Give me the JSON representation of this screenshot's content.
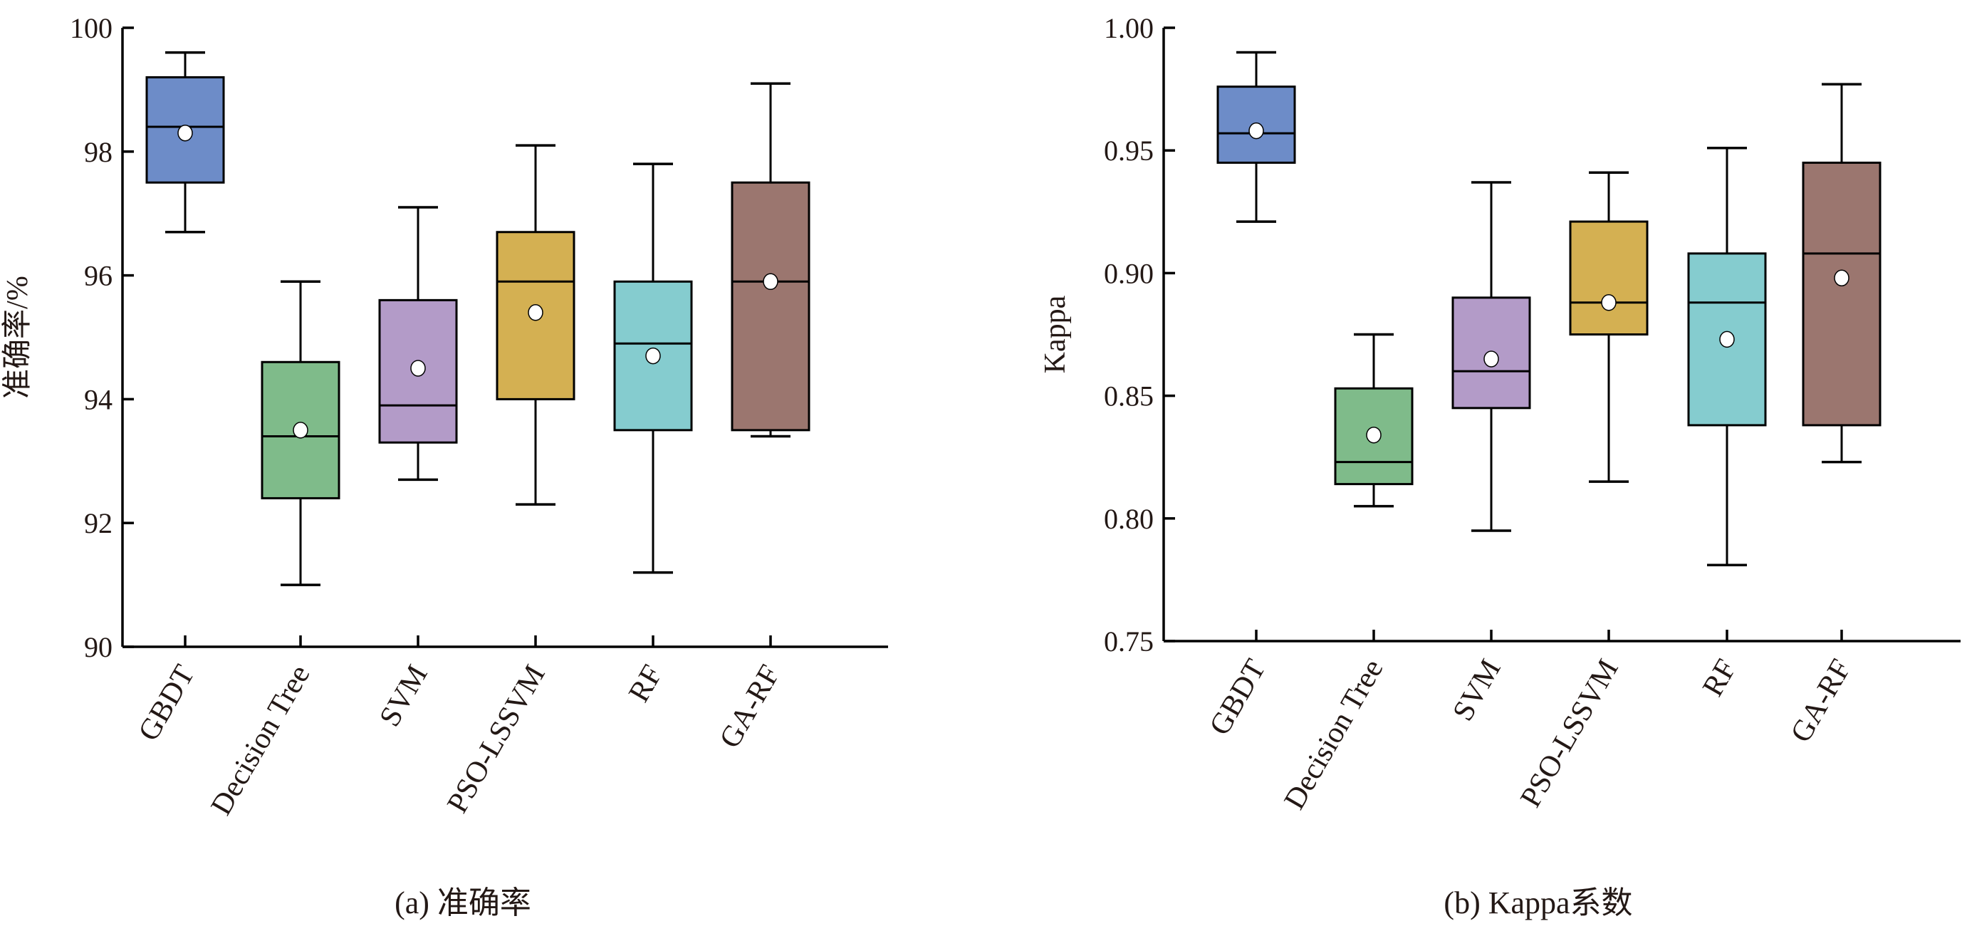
{
  "chart_data": [
    {
      "type": "boxplot",
      "caption": "(a) 准确率",
      "ylabel": "准确率/%",
      "ylim": [
        90,
        100
      ],
      "yticks": [
        90,
        92,
        94,
        96,
        98,
        100
      ],
      "ytick_labels": [
        "90",
        "92",
        "94",
        "96",
        "98",
        "100"
      ],
      "categories": [
        "GBDT",
        "Decision Tree",
        "SVM",
        "PSO-LSSVM",
        "RF",
        "GA-RF"
      ],
      "colors": [
        "#6d8cc8",
        "#7fbb8a",
        "#b39bc8",
        "#d4b052",
        "#85cccf",
        "#9b766f"
      ],
      "series": [
        {
          "name": "GBDT",
          "min": 96.7,
          "q1": 97.5,
          "median": 98.4,
          "q3": 99.2,
          "max": 99.6,
          "mean": 98.3
        },
        {
          "name": "Decision Tree",
          "min": 91.0,
          "q1": 92.4,
          "median": 93.4,
          "q3": 94.6,
          "max": 95.9,
          "mean": 93.5
        },
        {
          "name": "SVM",
          "min": 92.7,
          "q1": 93.3,
          "median": 93.9,
          "q3": 95.6,
          "max": 97.1,
          "mean": 94.5
        },
        {
          "name": "PSO-LSSVM",
          "min": 92.3,
          "q1": 94.0,
          "median": 95.9,
          "q3": 96.7,
          "max": 98.1,
          "mean": 95.4
        },
        {
          "name": "RF",
          "min": 91.2,
          "q1": 93.5,
          "median": 94.9,
          "q3": 95.9,
          "max": 97.8,
          "mean": 94.7
        },
        {
          "name": "GA-RF",
          "min": 93.4,
          "q1": 93.5,
          "median": 95.9,
          "q3": 97.5,
          "max": 99.1,
          "mean": 95.9
        }
      ]
    },
    {
      "type": "boxplot",
      "caption": "(b) Kappa系数",
      "ylabel": "Kappa",
      "ylim": [
        0.75,
        1.0
      ],
      "yticks": [
        0.75,
        0.8,
        0.85,
        0.9,
        0.95,
        1.0
      ],
      "ytick_labels": [
        "0.75",
        "0.80",
        "0.85",
        "0.90",
        "0.95",
        "1.00"
      ],
      "categories": [
        "GBDT",
        "Decision Tree",
        "SVM",
        "PSO-LSSVM",
        "RF",
        "GA-RF"
      ],
      "colors": [
        "#6d8cc8",
        "#7fbb8a",
        "#b39bc8",
        "#d4b052",
        "#85cccf",
        "#9b766f"
      ],
      "series": [
        {
          "name": "GBDT",
          "min": 0.921,
          "q1": 0.945,
          "median": 0.957,
          "q3": 0.976,
          "max": 0.99,
          "mean": 0.958
        },
        {
          "name": "Decision Tree",
          "min": 0.805,
          "q1": 0.814,
          "median": 0.823,
          "q3": 0.853,
          "max": 0.875,
          "mean": 0.834
        },
        {
          "name": "SVM",
          "min": 0.795,
          "q1": 0.845,
          "median": 0.86,
          "q3": 0.89,
          "max": 0.937,
          "mean": 0.865
        },
        {
          "name": "PSO-LSSVM",
          "min": 0.815,
          "q1": 0.875,
          "median": 0.888,
          "q3": 0.921,
          "max": 0.941,
          "mean": 0.888
        },
        {
          "name": "RF",
          "min": 0.781,
          "q1": 0.838,
          "median": 0.888,
          "q3": 0.908,
          "max": 0.951,
          "mean": 0.873
        },
        {
          "name": "GA-RF",
          "min": 0.823,
          "q1": 0.838,
          "median": 0.908,
          "q3": 0.945,
          "max": 0.977,
          "mean": 0.898
        }
      ]
    }
  ]
}
